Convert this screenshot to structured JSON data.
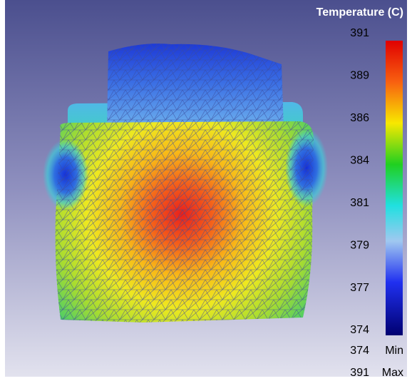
{
  "legend": {
    "title": "Temperature (C)",
    "ticks": [
      391,
      389,
      386,
      384,
      381,
      379,
      377,
      374
    ]
  },
  "min": {
    "value": 374,
    "label": "Min"
  },
  "max": {
    "value": 391,
    "label": "Max"
  }
}
